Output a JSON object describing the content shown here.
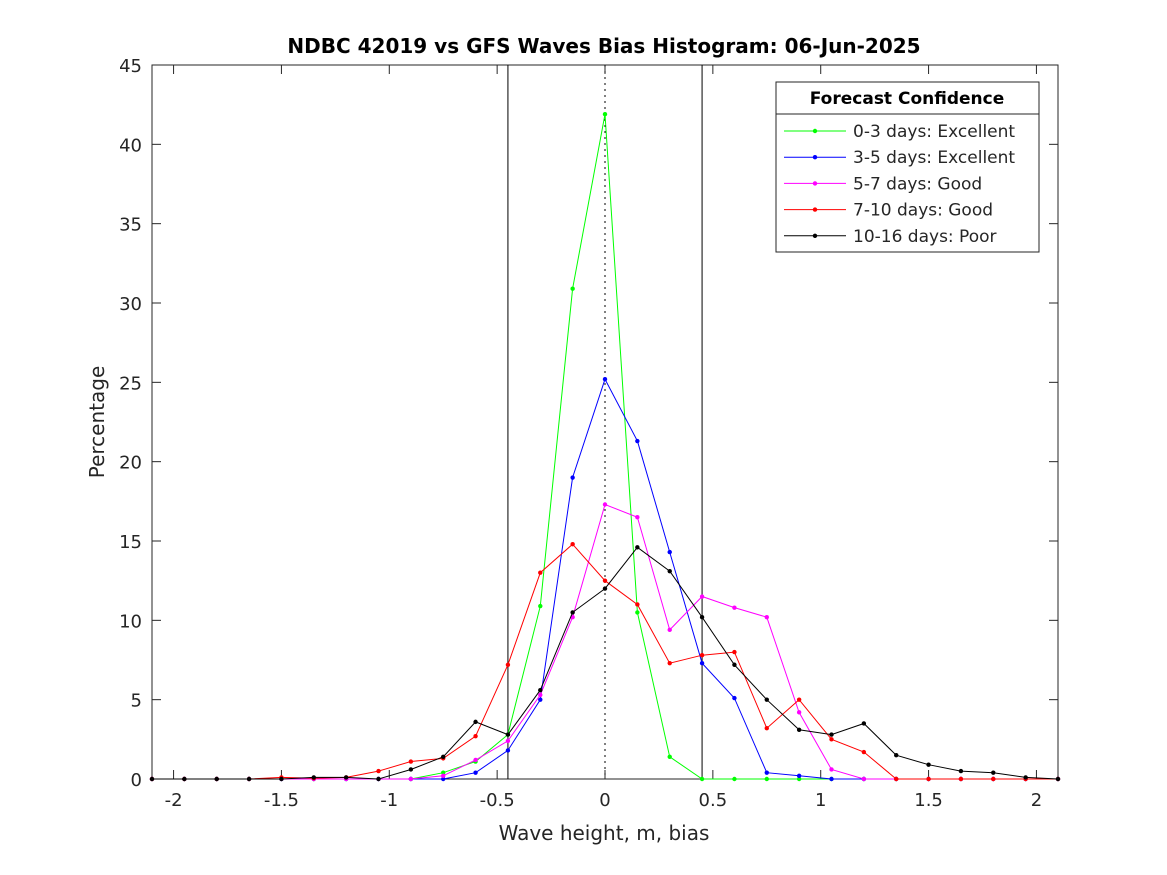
{
  "chart_data": {
    "type": "line",
    "title": "NDBC 42019 vs GFS Waves Bias Histogram: 06-Jun-2025",
    "xlabel": "Wave height, m, bias",
    "ylabel": "Percentage",
    "xlim": [
      -2.1,
      2.1
    ],
    "ylim": [
      0,
      45
    ],
    "xticks": [
      -2,
      -1.5,
      -1,
      -0.5,
      0,
      0.5,
      1,
      1.5,
      2
    ],
    "xtick_labels": [
      "-2",
      "-1.5",
      "-1",
      "-0.5",
      "0",
      "0.5",
      "1",
      "1.5",
      "2"
    ],
    "yticks": [
      0,
      5,
      10,
      15,
      20,
      25,
      30,
      35,
      40,
      45
    ],
    "ytick_labels": [
      "0",
      "5",
      "10",
      "15",
      "20",
      "25",
      "30",
      "35",
      "40",
      "45"
    ],
    "grid": false,
    "legend": {
      "title": "Forecast Confidence",
      "position": "top-right"
    },
    "reference_lines": [
      {
        "x": -0.45,
        "style": "solid"
      },
      {
        "x": 0,
        "style": "dotted"
      },
      {
        "x": 0.45,
        "style": "solid"
      }
    ],
    "x": [
      -2.1,
      -1.95,
      -1.8,
      -1.65,
      -1.5,
      -1.35,
      -1.2,
      -1.05,
      -0.9,
      -0.75,
      -0.6,
      -0.45,
      -0.3,
      -0.15,
      0,
      0.15,
      0.3,
      0.45,
      0.6,
      0.75,
      0.9,
      1.05,
      1.2,
      1.35,
      1.5,
      1.65,
      1.8,
      1.95,
      2.1
    ],
    "series": [
      {
        "name": "0-3 days: Excellent",
        "color": "#00ff00",
        "values": [
          0,
          0,
          0,
          0,
          0,
          0,
          0,
          0,
          0,
          0.4,
          1.1,
          2.8,
          10.9,
          30.9,
          41.9,
          10.5,
          1.4,
          0,
          0,
          0,
          0,
          0,
          0,
          0,
          0,
          0,
          0,
          0,
          0
        ]
      },
      {
        "name": "3-5 days: Excellent",
        "color": "#0000ff",
        "values": [
          0,
          0,
          0,
          0,
          0,
          0,
          0,
          0,
          0,
          0,
          0.4,
          1.8,
          5.0,
          19.0,
          25.2,
          21.3,
          14.3,
          7.3,
          5.1,
          0.4,
          0.2,
          0,
          0,
          0,
          0,
          0,
          0,
          0,
          0
        ]
      },
      {
        "name": "5-7 days: Good",
        "color": "#ff00ff",
        "values": [
          0,
          0,
          0,
          0,
          0,
          0,
          0,
          0,
          0,
          0.2,
          1.2,
          2.4,
          5.3,
          10.2,
          17.3,
          16.5,
          9.4,
          11.5,
          10.8,
          10.2,
          4.2,
          0.6,
          0,
          0,
          0,
          0,
          0,
          0,
          0
        ]
      },
      {
        "name": "7-10 days: Good",
        "color": "#ff0000",
        "values": [
          0,
          0,
          0,
          0,
          0.1,
          0.05,
          0.1,
          0.5,
          1.1,
          1.3,
          2.7,
          7.2,
          13.0,
          14.8,
          12.5,
          11.0,
          7.3,
          7.8,
          8.0,
          3.2,
          5.0,
          2.5,
          1.7,
          0,
          0,
          0,
          0,
          0,
          0
        ]
      },
      {
        "name": "10-16 days: Poor",
        "color": "#000000",
        "values": [
          0,
          0,
          0,
          0,
          0,
          0.1,
          0.1,
          0,
          0.6,
          1.4,
          3.6,
          2.8,
          5.6,
          10.5,
          12.0,
          14.6,
          13.1,
          10.2,
          7.2,
          5.0,
          3.1,
          2.8,
          3.5,
          1.5,
          0.9,
          0.5,
          0.4,
          0.1,
          0
        ]
      }
    ]
  }
}
